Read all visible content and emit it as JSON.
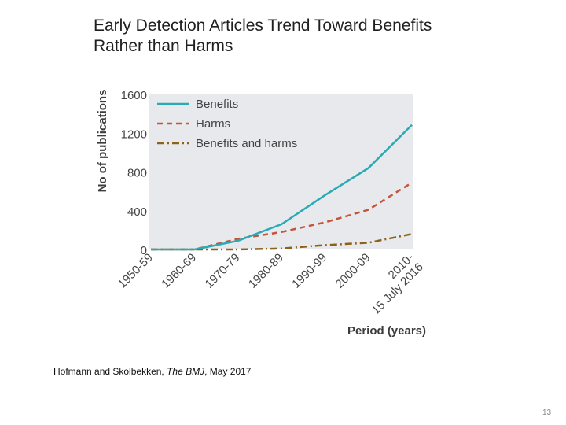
{
  "slide": {
    "title_line1": "Early Detection Articles Trend Toward Benefits",
    "title_line2": "Rather than Harms",
    "caption_prefix": "Hofmann and Skolbekken, ",
    "caption_journal": "The BMJ",
    "caption_suffix": ", May 2017",
    "page_number": "13"
  },
  "chart_data": {
    "type": "line",
    "title": "",
    "xlabel": "Period (years)",
    "ylabel": "No of publications",
    "categories": [
      "1950-59",
      "1960-69",
      "1970-79",
      "1980-89",
      "1990-99",
      "2000-09",
      "2010-15 July 2016"
    ],
    "category_lines": [
      [
        "1950-59"
      ],
      [
        "1960-69"
      ],
      [
        "1970-79"
      ],
      [
        "1980-89"
      ],
      [
        "1990-99"
      ],
      [
        "2000-09"
      ],
      [
        "2010-",
        "15 July 2016"
      ]
    ],
    "ylim": [
      0,
      1600
    ],
    "yticks": [
      "0",
      "400",
      "800",
      "1200",
      "1600"
    ],
    "grid": false,
    "background": "#e8e9ec",
    "legend_position": "top-left",
    "series": [
      {
        "name": "Benefits",
        "color": "#29aab5",
        "dash": "solid",
        "values": [
          0,
          0,
          90,
          260,
          560,
          840,
          1285
        ]
      },
      {
        "name": "Harms",
        "color": "#c4553a",
        "dash": "dashed",
        "values": [
          0,
          0,
          110,
          180,
          280,
          410,
          690
        ]
      },
      {
        "name": "Benefits and harms",
        "color": "#8b6219",
        "dash": "dashdot",
        "values": [
          0,
          0,
          0,
          10,
          45,
          70,
          160
        ]
      }
    ]
  }
}
